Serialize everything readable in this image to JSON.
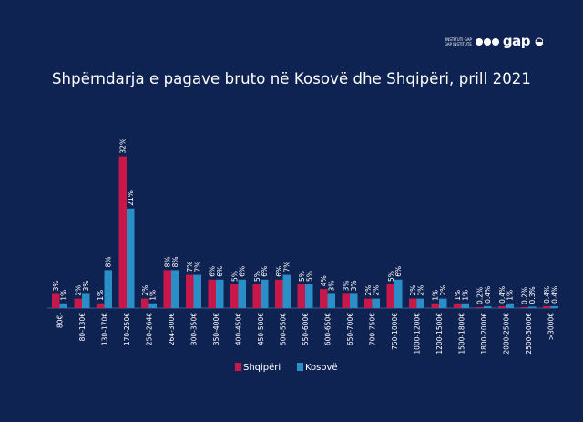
{
  "logo": {
    "line1": "INSTITUTI GAP",
    "line2": "GAP INSTITUTE",
    "wordmark": "gap"
  },
  "chart_data": {
    "type": "bar",
    "title": "Shpërndarja e pagave bruto në Kosovë dhe Shqipëri, prill 2021",
    "xlabel": "",
    "ylabel": "",
    "ylim": [
      0,
      34
    ],
    "grid": false,
    "legend_position": "bottom",
    "categories": [
      "80€-",
      "80-130€",
      "130-170€",
      "170-250€",
      "250-264€",
      "264-300€",
      "300-350€",
      "350-400€",
      "400-450€",
      "450-500€",
      "500-550€",
      "550-600€",
      "600-650€",
      "650-700€",
      "700-750€",
      "750-1000€",
      "1000-1200€",
      "1200-1500€",
      "1500-1800€",
      "1800-2000€",
      "2000-2500€",
      "2500-3000€",
      ">3000€"
    ],
    "series": [
      {
        "name": "Shqipëri",
        "color": "#c8184a",
        "values": [
          3,
          2,
          1,
          32,
          2,
          8,
          7,
          6,
          5,
          5,
          6,
          5,
          4,
          3,
          2,
          5,
          2,
          1,
          1,
          0.2,
          0.4,
          0.2,
          0.4
        ],
        "labels": [
          "3%",
          "2%",
          "1%",
          "32%",
          "2%",
          "8%",
          "7%",
          "6%",
          "5%",
          "5%",
          "6%",
          "5%",
          "4%",
          "3%",
          "2%",
          "5%",
          "2%",
          "1%",
          "1%",
          "0.2%",
          "0.4%",
          "0.2%",
          "0.4%"
        ]
      },
      {
        "name": "Kosovë",
        "color": "#2a8fc7",
        "values": [
          1,
          3,
          8,
          21,
          1,
          8,
          7,
          6,
          6,
          6,
          7,
          5,
          3,
          3,
          2,
          6,
          2,
          2,
          1,
          0.4,
          1,
          0.3,
          0.4
        ],
        "labels": [
          "1%",
          "3%",
          "8%",
          "21%",
          "1%",
          "8%",
          "7%",
          "6%",
          "6%",
          "6%",
          "7%",
          "5%",
          "3%",
          "3%",
          "2%",
          "6%",
          "2%",
          "2%",
          "1%",
          "0.4%",
          "1%",
          "0.3%",
          "0.4%"
        ]
      }
    ]
  }
}
